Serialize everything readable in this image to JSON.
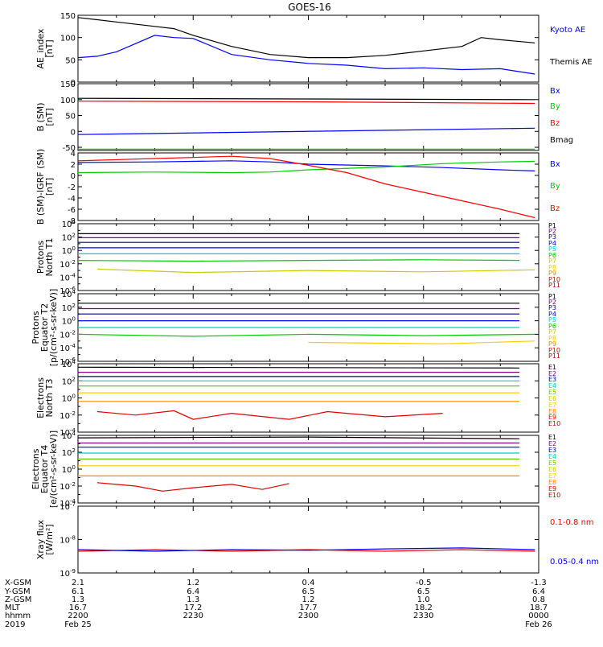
{
  "title": "GOES-16",
  "colors": {
    "black": "#000000",
    "blue": "#0000ff",
    "green": "#00cc00",
    "red": "#ff0000",
    "navy": "#00008b",
    "purple": "#800080",
    "magenta": "#cc00cc",
    "cyan": "#00cccc",
    "teal": "#009999",
    "lime": "#66cc00",
    "yellow": "#ffcc00",
    "gold": "#cccc00",
    "orange": "#ff8800",
    "darkred": "#bb0000",
    "crimson": "#dd0000"
  },
  "chart_data": [
    {
      "type": "line",
      "ylabel": [
        "AE_index",
        "[nT]"
      ],
      "ylim": [
        0,
        150
      ],
      "scale": "linear",
      "yticks": [
        0,
        50,
        100,
        150
      ],
      "ytick_labels": [
        "0",
        "50",
        "100",
        "150"
      ],
      "series": [
        {
          "name": "Kyoto AE",
          "color": "#0000ff",
          "x": [
            0,
            5,
            10,
            20,
            25,
            30,
            40,
            50,
            60,
            70,
            80,
            90,
            100,
            110,
            119
          ],
          "y": [
            55,
            58,
            68,
            105,
            100,
            98,
            62,
            50,
            42,
            38,
            30,
            32,
            28,
            30,
            18
          ]
        },
        {
          "name": "Themis AE",
          "color": "#000000",
          "x": [
            0,
            5,
            10,
            20,
            25,
            30,
            40,
            50,
            60,
            70,
            80,
            90,
            100,
            105,
            110,
            119
          ],
          "y": [
            145,
            140,
            135,
            125,
            120,
            105,
            80,
            62,
            55,
            55,
            60,
            70,
            80,
            100,
            95,
            88
          ]
        }
      ],
      "legend": [
        "Kyoto AE",
        "Themis AE"
      ]
    },
    {
      "type": "line",
      "ylabel": [
        "B (SM)",
        "[nT]"
      ],
      "ylim": [
        -60,
        150
      ],
      "scale": "linear",
      "yticks": [
        -50,
        0,
        50,
        100,
        150
      ],
      "ytick_labels": [
        "-50",
        "0",
        "50",
        "100",
        "150"
      ],
      "series": [
        {
          "name": "Bx",
          "color": "#0000ff",
          "x": [
            0,
            119
          ],
          "y": [
            -10,
            10
          ]
        },
        {
          "name": "By",
          "color": "#00cc00",
          "x": [
            0,
            119
          ],
          "y": [
            -56,
            -56
          ]
        },
        {
          "name": "Bz",
          "color": "#ff0000",
          "x": [
            0,
            60,
            119
          ],
          "y": [
            95,
            93,
            88
          ]
        },
        {
          "name": "Bmag",
          "color": "#000000",
          "x": [
            0,
            60,
            119
          ],
          "y": [
            104,
            102,
            100
          ]
        }
      ],
      "legend": [
        "Bx",
        "By",
        "Bz",
        "Bmag"
      ]
    },
    {
      "type": "line",
      "ylabel": [
        "B (SM)-IGRF (SM)",
        "[nT]"
      ],
      "ylim": [
        -8,
        4
      ],
      "scale": "linear",
      "yticks": [
        -8,
        -6,
        -4,
        -2,
        0,
        2,
        4
      ],
      "ytick_labels": [
        "-8",
        "-6",
        "-4",
        "-2",
        "0",
        "2",
        "4"
      ],
      "series": [
        {
          "name": "Bx",
          "color": "#0000ff",
          "x": [
            0,
            20,
            40,
            50,
            60,
            80,
            95,
            110,
            119
          ],
          "y": [
            2.3,
            2.4,
            2.6,
            2.4,
            2.0,
            1.7,
            1.4,
            1.0,
            0.8
          ]
        },
        {
          "name": "By",
          "color": "#00cc00",
          "x": [
            0,
            20,
            40,
            50,
            60,
            80,
            95,
            110,
            119
          ],
          "y": [
            0.5,
            0.6,
            0.5,
            0.6,
            1.0,
            1.5,
            2.1,
            2.4,
            2.5
          ]
        },
        {
          "name": "Bz",
          "color": "#ff0000",
          "x": [
            0,
            20,
            40,
            50,
            60,
            70,
            80,
            90,
            100,
            110,
            119
          ],
          "y": [
            2.6,
            3.0,
            3.4,
            3.0,
            1.8,
            0.5,
            -1.5,
            -3.0,
            -4.5,
            -6.0,
            -7.5
          ]
        }
      ],
      "legend": [
        "Bx",
        "By",
        "Bz"
      ]
    },
    {
      "type": "line",
      "ylabel": [
        "Protons",
        "North T1"
      ],
      "ylim": [
        -6,
        4
      ],
      "scale": "log",
      "yticks": [
        -6,
        -4,
        -2,
        0,
        2,
        4
      ],
      "ytick_labels": [
        "10^-6",
        "10^-4",
        "10^-2",
        "10^0",
        "10^2",
        "10^4"
      ],
      "series": [
        {
          "name": "P1",
          "color": "#000000",
          "x": [
            0,
            115
          ],
          "y": [
            2.5,
            2.5
          ]
        },
        {
          "name": "P2",
          "color": "#800080",
          "x": [
            0,
            115
          ],
          "y": [
            1.9,
            1.9
          ]
        },
        {
          "name": "P3",
          "color": "#00008b",
          "x": [
            0,
            115
          ],
          "y": [
            1.2,
            1.2
          ]
        },
        {
          "name": "P4",
          "color": "#0000ff",
          "x": [
            0,
            115
          ],
          "y": [
            0.4,
            0.4
          ]
        },
        {
          "name": "P5",
          "color": "#00cccc",
          "x": [
            0,
            115
          ],
          "y": [
            -0.5,
            -0.5
          ]
        },
        {
          "name": "P6",
          "color": "#00cc00",
          "x": [
            0,
            30,
            60,
            90,
            115
          ],
          "y": [
            -1.5,
            -1.6,
            -1.5,
            -1.4,
            -1.5
          ]
        },
        {
          "name": "P7",
          "color": "#cccc00",
          "x": [
            5,
            30,
            60,
            90,
            119
          ],
          "y": [
            -2.8,
            -3.3,
            -3.0,
            -3.2,
            -2.9
          ]
        }
      ],
      "legend": [
        "P1",
        "P2",
        "P3",
        "P4",
        "P5",
        "P6",
        "P7",
        "P8",
        "P9",
        "P10",
        "P11"
      ]
    },
    {
      "type": "line",
      "ylabel": [
        "Protons",
        "Equator T2",
        "[p/(cm²-s-sr-keV)]"
      ],
      "ylim": [
        -6,
        4
      ],
      "scale": "log",
      "yticks": [
        -6,
        -4,
        -2,
        0,
        2,
        4
      ],
      "ytick_labels": [
        "10^-6",
        "10^-4",
        "10^-2",
        "10^0",
        "10^2",
        "10^4"
      ],
      "series": [
        {
          "name": "P1",
          "color": "#000000",
          "x": [
            0,
            115
          ],
          "y": [
            2.6,
            2.6
          ]
        },
        {
          "name": "P2",
          "color": "#800080",
          "x": [
            0,
            115
          ],
          "y": [
            1.8,
            1.8
          ]
        },
        {
          "name": "P3",
          "color": "#00008b",
          "x": [
            0,
            115
          ],
          "y": [
            1.0,
            1.0
          ]
        },
        {
          "name": "P4",
          "color": "#0000ff",
          "x": [
            0,
            115
          ],
          "y": [
            0.0,
            0.0
          ]
        },
        {
          "name": "P5",
          "color": "#00cccc",
          "x": [
            0,
            115
          ],
          "y": [
            -1.0,
            -1.0
          ]
        },
        {
          "name": "P6",
          "color": "#00cc00",
          "x": [
            0,
            30,
            60,
            90,
            119
          ],
          "y": [
            -2.0,
            -2.3,
            -2.0,
            -2.2,
            -2.0
          ]
        },
        {
          "name": "P7",
          "color": "#ffcc00",
          "x": [
            60,
            95,
            119
          ],
          "y": [
            -3.2,
            -3.4,
            -3.0
          ]
        }
      ],
      "legend": [
        "P1",
        "P2",
        "P3",
        "P4",
        "P5",
        "P6",
        "P7",
        "P8",
        "P9",
        "P10",
        "P11"
      ]
    },
    {
      "type": "line",
      "ylabel": [
        "Electrons",
        "North T3"
      ],
      "ylim": [
        -4,
        4
      ],
      "scale": "log",
      "yticks": [
        -4,
        -2,
        0,
        2,
        4
      ],
      "ytick_labels": [
        "10^-4",
        "10^-2",
        "10^0",
        "10^2",
        "10^4"
      ],
      "series": [
        {
          "name": "E1",
          "color": "#000000",
          "x": [
            0,
            115
          ],
          "y": [
            3.6,
            3.5
          ]
        },
        {
          "name": "E2",
          "color": "#800080",
          "x": [
            0,
            115
          ],
          "y": [
            3.0,
            3.0
          ]
        },
        {
          "name": "E3",
          "color": "#00008b",
          "x": [
            0,
            115
          ],
          "y": [
            2.5,
            2.5
          ]
        },
        {
          "name": "E4",
          "color": "#00cccc",
          "x": [
            0,
            115
          ],
          "y": [
            2.0,
            2.0
          ]
        },
        {
          "name": "E5",
          "color": "#66cc00",
          "x": [
            0,
            115
          ],
          "y": [
            1.4,
            1.4
          ]
        },
        {
          "name": "E6",
          "color": "#ffcc00",
          "x": [
            0,
            115
          ],
          "y": [
            0.6,
            0.6
          ]
        },
        {
          "name": "E7",
          "color": "#ff8800",
          "x": [
            0,
            115
          ],
          "y": [
            -0.4,
            -0.4
          ]
        },
        {
          "name": "E9",
          "color": "#dd0000",
          "x": [
            5,
            15,
            25,
            30,
            40,
            55,
            65,
            80,
            95
          ],
          "y": [
            -1.6,
            -2.0,
            -1.5,
            -2.5,
            -1.8,
            -2.5,
            -1.6,
            -2.2,
            -1.8
          ]
        }
      ],
      "legend": [
        "E1",
        "E2",
        "E3",
        "E4",
        "E5",
        "E6",
        "E7",
        "E8",
        "E9",
        "E10"
      ]
    },
    {
      "type": "line",
      "ylabel": [
        "Electrons",
        "Equator T4",
        "[e/(cm²-s-sr-keV)]"
      ],
      "ylim": [
        -4,
        4
      ],
      "scale": "log",
      "yticks": [
        -4,
        -2,
        0,
        2,
        4
      ],
      "ytick_labels": [
        "10^-4",
        "10^-2",
        "10^0",
        "10^2",
        "10^4"
      ],
      "series": [
        {
          "name": "E1",
          "color": "#000000",
          "x": [
            0,
            60,
            115
          ],
          "y": [
            3.7,
            3.8,
            3.6
          ]
        },
        {
          "name": "E2",
          "color": "#800080",
          "x": [
            0,
            115
          ],
          "y": [
            3.1,
            3.1
          ]
        },
        {
          "name": "E3",
          "color": "#0000ff",
          "x": [
            0,
            115
          ],
          "y": [
            2.6,
            2.6
          ]
        },
        {
          "name": "E4",
          "color": "#00cccc",
          "x": [
            0,
            115
          ],
          "y": [
            1.9,
            1.9
          ]
        },
        {
          "name": "E5",
          "color": "#66cc00",
          "x": [
            0,
            115
          ],
          "y": [
            1.2,
            1.2
          ]
        },
        {
          "name": "E6",
          "color": "#ffcc00",
          "x": [
            0,
            115
          ],
          "y": [
            0.4,
            0.4
          ]
        },
        {
          "name": "E7",
          "color": "#ff8800",
          "x": [
            0,
            115
          ],
          "y": [
            -0.8,
            -0.8
          ]
        },
        {
          "name": "E9",
          "color": "#dd0000",
          "x": [
            5,
            15,
            22,
            30,
            40,
            48,
            55
          ],
          "y": [
            -1.6,
            -2.0,
            -2.6,
            -2.2,
            -1.8,
            -2.4,
            -1.7
          ]
        }
      ],
      "legend": [
        "E1",
        "E2",
        "E3",
        "E4",
        "E5",
        "E6",
        "E7",
        "E8",
        "E9",
        "E10"
      ]
    },
    {
      "type": "line",
      "ylabel": [
        "Xray flux",
        "[W/m²]"
      ],
      "ylim": [
        -9,
        -7
      ],
      "scale": "log",
      "yticks": [
        -9,
        -8,
        -7
      ],
      "ytick_labels": [
        "10^-9",
        "10^-8",
        "10^-7"
      ],
      "series": [
        {
          "name": "0.1-0.8 nm",
          "color": "#ff0000",
          "x": [
            0,
            20,
            40,
            60,
            80,
            100,
            119
          ],
          "y": [
            -8.35,
            -8.3,
            -8.35,
            -8.3,
            -8.35,
            -8.3,
            -8.35
          ]
        },
        {
          "name": "0.05-0.4 nm",
          "color": "#0000ff",
          "x": [
            0,
            20,
            40,
            60,
            80,
            100,
            119
          ],
          "y": [
            -8.3,
            -8.35,
            -8.3,
            -8.32,
            -8.28,
            -8.25,
            -8.3
          ]
        }
      ],
      "legend": [
        "0.1-0.8 nm",
        "0.05-0.4 nm"
      ]
    }
  ],
  "orbit_table": {
    "row_labels": [
      "X-GSM",
      "Y-GSM",
      "Z-GSM",
      "MLT",
      "hhmm",
      "2019"
    ],
    "columns": [
      {
        "values": [
          "2.1",
          "6.1",
          "1.3",
          "16.7",
          "2200",
          "Feb 25"
        ]
      },
      {
        "values": [
          "1.2",
          "6.4",
          "1.3",
          "17.2",
          "2230",
          ""
        ]
      },
      {
        "values": [
          "0.4",
          "6.5",
          "1.2",
          "17.7",
          "2300",
          ""
        ]
      },
      {
        "values": [
          "-0.5",
          "6.5",
          "1.0",
          "18.2",
          "2330",
          ""
        ]
      },
      {
        "values": [
          "-1.3",
          "6.4",
          "0.8",
          "18.7",
          "0000",
          "Feb 26"
        ]
      }
    ]
  }
}
